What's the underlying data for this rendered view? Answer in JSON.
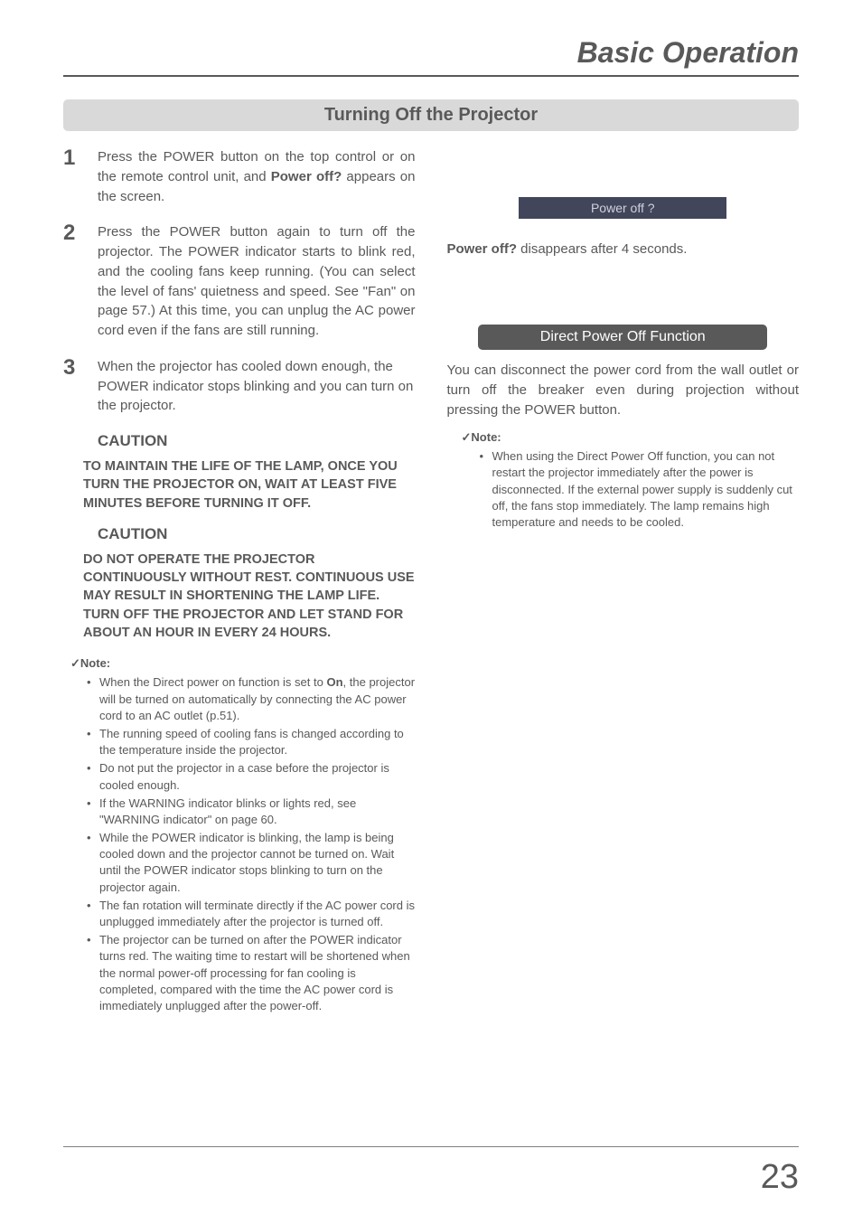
{
  "header": {
    "title": "Basic Operation"
  },
  "section": {
    "title": "Turning Off the Projector"
  },
  "steps": [
    {
      "num": "1",
      "text_parts": [
        "Press the POWER button on the top control or on the remote control unit, and ",
        "Power off?",
        " appears on the screen."
      ]
    },
    {
      "num": "2",
      "text": "Press the POWER button again to turn off the projector. The POWER indicator starts to blink red, and the cooling fans keep running. (You can select the level of fans' quietness and speed. See \"Fan\" on page 57.) At this time, you can unplug the AC power cord even if the fans are still running."
    },
    {
      "num": "3",
      "text": "When the projector has cooled down enough, the POWER indicator stops blinking and you can turn on the projector."
    }
  ],
  "cautions": [
    {
      "heading": "CAUTION",
      "body": "TO MAINTAIN THE LIFE OF THE LAMP, ONCE YOU TURN THE PROJECTOR ON, WAIT AT LEAST FIVE MINUTES BEFORE TURNING IT OFF."
    },
    {
      "heading": "CAUTION",
      "body": "DO NOT OPERATE THE PROJECTOR CONTINUOUSLY WITHOUT REST. CONTINUOUS USE MAY RESULT IN SHORTENING THE LAMP LIFE. TURN OFF THE PROJECTOR AND LET STAND FOR ABOUT AN HOUR IN EVERY 24 HOURS."
    }
  ],
  "left_note": {
    "heading": "Note:",
    "check": "✓",
    "items_parts": [
      [
        "When the Direct power on function is set to ",
        "On",
        ", the projector will be turned on automatically by connecting the AC power cord to an AC outlet (p.51)."
      ],
      [
        "The running speed of cooling fans is changed according to the temperature inside the projector."
      ],
      [
        "Do not put the projector in a case before the projector is cooled enough."
      ],
      [
        "If the WARNING indicator blinks or lights red, see \"WARNING indicator\" on page 60."
      ],
      [
        "While the POWER indicator is blinking, the lamp is being cooled down and the projector cannot be turned on. Wait until the POWER indicator stops blinking to turn on the projector again."
      ],
      [
        "The fan rotation will terminate directly if the AC power cord is unplugged immediately after the projector is turned off."
      ],
      [
        "The projector can be turned on after the POWER indicator turns red. The waiting time to restart will be shortened when the normal power-off processing for fan cooling is completed, compared with the time the AC power cord is immediately unplugged after the power-off."
      ]
    ]
  },
  "right": {
    "badge": "Power off ?",
    "badge_note_parts": [
      "Power off?",
      " disappears after 4 seconds."
    ],
    "func_bar": "Direct Power Off Function",
    "func_text": "You can disconnect the power cord from the wall outlet or turn off the breaker even during projection without pressing the POWER button.",
    "note_heading": "Note:",
    "check": "✓",
    "note_item": "When using the Direct Power Off function, you can not restart the projector immediately after the power is disconnected. If the external power supply is suddenly cut off, the fans stop immediately. The lamp remains high temperature and needs to be cooled."
  },
  "page_number": "23"
}
